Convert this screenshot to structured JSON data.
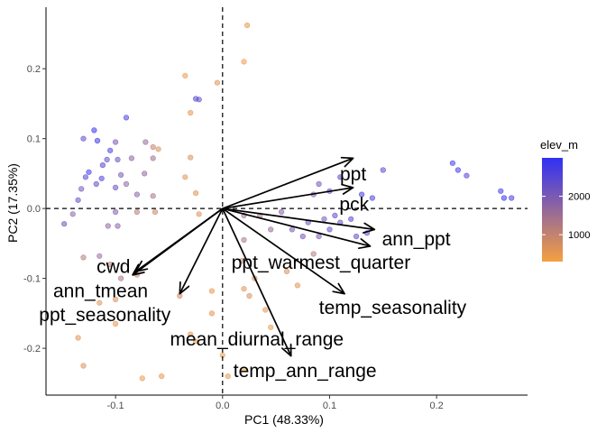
{
  "chart_data": {
    "type": "scatter",
    "subtype": "pca-biplot",
    "title": "",
    "xlabel": "PC1 (48.33%)",
    "ylabel": "PC2 (17.35%)",
    "xlim": [
      -0.165,
      0.285
    ],
    "ylim": [
      -0.267,
      0.288
    ],
    "x_ticks": [
      -0.1,
      0.0,
      0.1,
      0.2
    ],
    "x_tick_labels": [
      "-0.1",
      "0.0",
      "0.1",
      "0.2"
    ],
    "y_ticks": [
      -0.2,
      -0.1,
      0.0,
      0.1,
      0.2
    ],
    "y_tick_labels": [
      "-0.2",
      "-0.1",
      "0.0",
      "0.1",
      "0.2"
    ],
    "grid": false,
    "reference_lines": {
      "x": 0,
      "y": 0,
      "style": "dashed"
    },
    "colors": {
      "low": "#F5A040",
      "high": "#3030F5",
      "arrow": "#000000"
    },
    "legend": {
      "title": "elev_m",
      "placement": "right",
      "min": 300,
      "max": 3000,
      "ticks": [
        1000,
        2000
      ],
      "tick_labels": [
        "1000",
        "2000"
      ]
    },
    "arrows": [
      {
        "name": "ppt",
        "x": 0.122,
        "y": 0.072
      },
      {
        "name": "pck",
        "x": 0.122,
        "y": 0.03
      },
      {
        "name": "ann_ppt",
        "x": 0.142,
        "y": -0.03
      },
      {
        "name": "temp_seasonality",
        "x": 0.114,
        "y": -0.122
      },
      {
        "name": "temp_ann_range",
        "x": 0.064,
        "y": -0.211
      },
      {
        "name": "ppt_warmest_quarter",
        "x": 0.138,
        "y": -0.054
      },
      {
        "name": "mean_diurnal_range",
        "x": -0.04,
        "y": -0.122
      },
      {
        "name": "cwd",
        "x": -0.081,
        "y": -0.09
      },
      {
        "name": "ann_tmean",
        "x": -0.084,
        "y": -0.095
      },
      {
        "name": "ppt_seasonality",
        "x": -0.084,
        "y": -0.095
      }
    ],
    "arrow_labels": [
      {
        "text": "ppt",
        "x": 0.122,
        "y": 0.049
      },
      {
        "text": "pck",
        "x": 0.123,
        "y": 0.006
      },
      {
        "text": "ann_ppt",
        "x": 0.181,
        "y": -0.044
      },
      {
        "text": "ppt_warmest_quarter",
        "x": 0.092,
        "y": -0.077
      },
      {
        "text": "temp_seasonality",
        "x": 0.159,
        "y": -0.142
      },
      {
        "text": "cwd",
        "x": -0.102,
        "y": -0.083
      },
      {
        "text": "ann_tmean",
        "x": -0.114,
        "y": -0.118
      },
      {
        "text": "ppt_seasonality",
        "x": -0.11,
        "y": -0.152
      },
      {
        "text": "mean_diurnal_range",
        "x": 0.032,
        "y": -0.187
      },
      {
        "text": "temp_ann_range",
        "x": 0.077,
        "y": -0.232
      }
    ],
    "points": [
      {
        "x": 0.023,
        "y": 0.262,
        "elev": 500
      },
      {
        "x": 0.02,
        "y": 0.21,
        "elev": 400
      },
      {
        "x": -0.035,
        "y": 0.19,
        "elev": 450
      },
      {
        "x": -0.025,
        "y": 0.157,
        "elev": 2500
      },
      {
        "x": -0.022,
        "y": 0.156,
        "elev": 2400
      },
      {
        "x": -0.005,
        "y": 0.18,
        "elev": 600
      },
      {
        "x": -0.03,
        "y": 0.137,
        "elev": 550
      },
      {
        "x": -0.09,
        "y": 0.13,
        "elev": 2600
      },
      {
        "x": -0.12,
        "y": 0.112,
        "elev": 2900
      },
      {
        "x": -0.117,
        "y": 0.097,
        "elev": 2800
      },
      {
        "x": -0.13,
        "y": 0.1,
        "elev": 2400
      },
      {
        "x": -0.1,
        "y": 0.095,
        "elev": 2000
      },
      {
        "x": -0.072,
        "y": 0.095,
        "elev": 1600
      },
      {
        "x": -0.065,
        "y": 0.088,
        "elev": 1000
      },
      {
        "x": -0.06,
        "y": 0.085,
        "elev": 700
      },
      {
        "x": -0.105,
        "y": 0.083,
        "elev": 2700
      },
      {
        "x": -0.108,
        "y": 0.07,
        "elev": 2300
      },
      {
        "x": -0.098,
        "y": 0.07,
        "elev": 2200
      },
      {
        "x": -0.085,
        "y": 0.072,
        "elev": 1800
      },
      {
        "x": -0.065,
        "y": 0.072,
        "elev": 1500
      },
      {
        "x": -0.03,
        "y": 0.073,
        "elev": 700
      },
      {
        "x": -0.112,
        "y": 0.062,
        "elev": 2500
      },
      {
        "x": -0.125,
        "y": 0.052,
        "elev": 2800
      },
      {
        "x": -0.095,
        "y": 0.048,
        "elev": 2000
      },
      {
        "x": -0.073,
        "y": 0.05,
        "elev": 1700
      },
      {
        "x": -0.113,
        "y": 0.043,
        "elev": 2600
      },
      {
        "x": -0.128,
        "y": 0.045,
        "elev": 2500
      },
      {
        "x": -0.118,
        "y": 0.035,
        "elev": 2300
      },
      {
        "x": -0.1,
        "y": 0.03,
        "elev": 2200
      },
      {
        "x": -0.09,
        "y": 0.035,
        "elev": 1700
      },
      {
        "x": -0.035,
        "y": 0.045,
        "elev": 600
      },
      {
        "x": -0.08,
        "y": 0.02,
        "elev": 1800
      },
      {
        "x": -0.065,
        "y": 0.018,
        "elev": 1400
      },
      {
        "x": -0.025,
        "y": 0.022,
        "elev": 600
      },
      {
        "x": -0.132,
        "y": 0.028,
        "elev": 2100
      },
      {
        "x": -0.135,
        "y": 0.012,
        "elev": 2300
      },
      {
        "x": -0.14,
        "y": -0.008,
        "elev": 1800
      },
      {
        "x": -0.1,
        "y": -0.005,
        "elev": 1900
      },
      {
        "x": -0.08,
        "y": -0.005,
        "elev": 1200
      },
      {
        "x": -0.063,
        "y": -0.005,
        "elev": 900
      },
      {
        "x": -0.022,
        "y": -0.008,
        "elev": 700
      },
      {
        "x": -0.148,
        "y": -0.022,
        "elev": 2200
      },
      {
        "x": -0.107,
        "y": -0.025,
        "elev": 1700
      },
      {
        "x": -0.098,
        "y": -0.025,
        "elev": 1800
      },
      {
        "x": -0.13,
        "y": -0.07,
        "elev": 1200
      },
      {
        "x": -0.115,
        "y": -0.068,
        "elev": 1600
      },
      {
        "x": -0.105,
        "y": -0.08,
        "elev": 1100
      },
      {
        "x": -0.08,
        "y": -0.095,
        "elev": 900
      },
      {
        "x": -0.095,
        "y": -0.1,
        "elev": 1400
      },
      {
        "x": -0.1,
        "y": -0.13,
        "elev": 700
      },
      {
        "x": -0.115,
        "y": -0.135,
        "elev": 600
      },
      {
        "x": -0.1,
        "y": -0.165,
        "elev": 500
      },
      {
        "x": -0.135,
        "y": -0.185,
        "elev": 600
      },
      {
        "x": -0.13,
        "y": -0.225,
        "elev": 700
      },
      {
        "x": -0.075,
        "y": -0.243,
        "elev": 450
      },
      {
        "x": -0.057,
        "y": -0.24,
        "elev": 500
      },
      {
        "x": -0.04,
        "y": -0.125,
        "elev": 800
      },
      {
        "x": -0.03,
        "y": -0.18,
        "elev": 450
      },
      {
        "x": -0.01,
        "y": -0.118,
        "elev": 500
      },
      {
        "x": -0.01,
        "y": -0.15,
        "elev": 550
      },
      {
        "x": -0.025,
        "y": -0.19,
        "elev": 400
      },
      {
        "x": 0.0,
        "y": -0.21,
        "elev": 450
      },
      {
        "x": 0.005,
        "y": -0.24,
        "elev": 500
      },
      {
        "x": 0.02,
        "y": -0.23,
        "elev": 400
      },
      {
        "x": 0.02,
        "y": -0.115,
        "elev": 600
      },
      {
        "x": 0.025,
        "y": -0.125,
        "elev": 700
      },
      {
        "x": 0.04,
        "y": -0.145,
        "elev": 500
      },
      {
        "x": 0.045,
        "y": -0.17,
        "elev": 450
      },
      {
        "x": 0.03,
        "y": -0.1,
        "elev": 800
      },
      {
        "x": 0.018,
        "y": -0.075,
        "elev": 900
      },
      {
        "x": 0.02,
        "y": -0.01,
        "elev": 1500
      },
      {
        "x": 0.02,
        "y": -0.045,
        "elev": 1300
      },
      {
        "x": 0.035,
        "y": -0.01,
        "elev": 1400
      },
      {
        "x": 0.045,
        "y": -0.03,
        "elev": 1600
      },
      {
        "x": 0.055,
        "y": -0.005,
        "elev": 1800
      },
      {
        "x": 0.065,
        "y": -0.03,
        "elev": 2000
      },
      {
        "x": 0.075,
        "y": -0.04,
        "elev": 2100
      },
      {
        "x": 0.08,
        "y": -0.02,
        "elev": 2200
      },
      {
        "x": 0.09,
        "y": -0.04,
        "elev": 2000
      },
      {
        "x": 0.095,
        "y": -0.015,
        "elev": 2100
      },
      {
        "x": 0.1,
        "y": -0.03,
        "elev": 2300
      },
      {
        "x": 0.105,
        "y": -0.01,
        "elev": 2400
      },
      {
        "x": 0.11,
        "y": -0.02,
        "elev": 2200
      },
      {
        "x": 0.12,
        "y": -0.015,
        "elev": 2500
      },
      {
        "x": 0.125,
        "y": -0.04,
        "elev": 2300
      },
      {
        "x": 0.135,
        "y": -0.035,
        "elev": 2400
      },
      {
        "x": 0.085,
        "y": 0.02,
        "elev": 1900
      },
      {
        "x": 0.09,
        "y": 0.035,
        "elev": 2100
      },
      {
        "x": 0.1,
        "y": 0.025,
        "elev": 2400
      },
      {
        "x": 0.11,
        "y": 0.045,
        "elev": 2500
      },
      {
        "x": 0.13,
        "y": 0.02,
        "elev": 2700
      },
      {
        "x": 0.14,
        "y": 0.015,
        "elev": 2600
      },
      {
        "x": 0.15,
        "y": 0.055,
        "elev": 2400
      },
      {
        "x": 0.215,
        "y": 0.065,
        "elev": 2800
      },
      {
        "x": 0.22,
        "y": 0.055,
        "elev": 2700
      },
      {
        "x": 0.228,
        "y": 0.047,
        "elev": 2600
      },
      {
        "x": 0.26,
        "y": 0.025,
        "elev": 2800
      },
      {
        "x": 0.263,
        "y": 0.015,
        "elev": 2900
      },
      {
        "x": 0.27,
        "y": 0.015,
        "elev": 2700
      },
      {
        "x": 0.06,
        "y": -0.09,
        "elev": 700
      },
      {
        "x": 0.07,
        "y": -0.11,
        "elev": 600
      },
      {
        "x": 0.085,
        "y": -0.065,
        "elev": 1200
      }
    ]
  }
}
